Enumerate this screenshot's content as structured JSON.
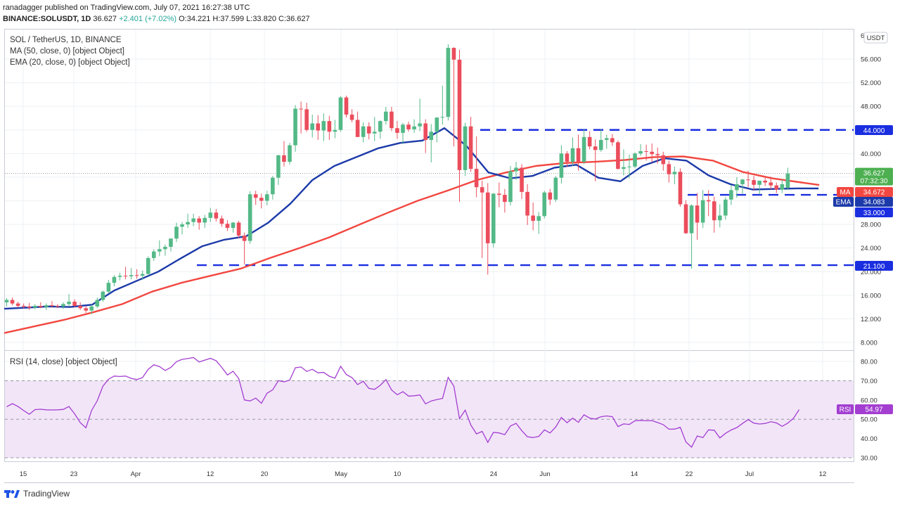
{
  "header": {
    "publisher_line": "ranadagger published on TradingView.com, July 07, 2021 16:27:38 UTC",
    "symbol": "BINANCE:SOLUSDT, 1D",
    "last": "36.627",
    "change": "+2.401 (+7.02%)",
    "open": "O:34.221",
    "high": "H:37.599",
    "low": "L:33.820",
    "close": "C:36.627"
  },
  "legend": {
    "title": "SOL / TetherUS, 1D, BINANCE",
    "ma": "MA (50, close, 0) [object Object]",
    "ema": "EMA (20, close, 0) [object Object]",
    "rsi": "RSI (14, close) [object Object]"
  },
  "currency_badge": "USDT",
  "footer": {
    "brand": "TradingView"
  },
  "colors": {
    "up": "#53b987",
    "down": "#eb4d5c",
    "ma": "#f24740",
    "ema": "#1c3aa9",
    "rsi": "#a33ed1",
    "rsi_fill": "#f2e5f8",
    "level": "#1a2ee0",
    "price": "#4caf50"
  },
  "chart_data": [
    {
      "type": "candlestick",
      "title": "SOL / TetherUS, 1D, BINANCE",
      "ylim": [
        6.5,
        60
      ],
      "y_ticks": [
        "8.000",
        "12.000",
        "16.000",
        "20.000",
        "24.000",
        "28.000",
        "32.000",
        "36.000",
        "40.000",
        "44.000",
        "48.000",
        "52.000",
        "56.000",
        "6"
      ],
      "x_ticks": [
        "15",
        "23",
        "Apr",
        "12",
        "20",
        "May",
        "10",
        "24",
        "Jun",
        "14",
        "22",
        "Jul",
        "12"
      ],
      "ohlc": [
        [
          14.8,
          15.5,
          14.1,
          15.2
        ],
        [
          15.2,
          15.6,
          14.3,
          14.6
        ],
        [
          14.6,
          14.9,
          13.9,
          14.2
        ],
        [
          14.2,
          14.6,
          13.7,
          14.1
        ],
        [
          14.1,
          14.7,
          13.5,
          13.9
        ],
        [
          13.9,
          14.5,
          13.6,
          14.2
        ],
        [
          14.2,
          14.8,
          13.8,
          14.0
        ],
        [
          14.0,
          14.6,
          13.5,
          14.3
        ],
        [
          14.3,
          15.0,
          13.9,
          14.2
        ],
        [
          14.2,
          14.5,
          13.8,
          14.1
        ],
        [
          14.1,
          14.8,
          13.7,
          14.5
        ],
        [
          14.5,
          16.2,
          14.1,
          14.9
        ],
        [
          14.9,
          15.3,
          14.0,
          14.2
        ],
        [
          14.2,
          14.8,
          13.5,
          13.8
        ],
        [
          13.8,
          14.2,
          13.0,
          13.4
        ],
        [
          13.4,
          14.4,
          12.8,
          14.1
        ],
        [
          14.1,
          15.6,
          13.8,
          15.2
        ],
        [
          15.2,
          16.8,
          14.9,
          16.6
        ],
        [
          16.6,
          18.6,
          16.3,
          18.1
        ],
        [
          18.1,
          19.4,
          17.5,
          19.1
        ],
        [
          19.1,
          19.8,
          18.5,
          19.3
        ],
        [
          19.3,
          20.8,
          18.7,
          19.2
        ],
        [
          19.2,
          20.6,
          18.7,
          19.4
        ],
        [
          19.4,
          20.4,
          18.8,
          19.3
        ],
        [
          19.3,
          20.2,
          18.6,
          19.6
        ],
        [
          19.6,
          22.6,
          19.3,
          22.3
        ],
        [
          22.3,
          23.8,
          21.8,
          23.4
        ],
        [
          23.4,
          25.3,
          22.6,
          23.8
        ],
        [
          23.8,
          24.6,
          22.7,
          24.2
        ],
        [
          24.2,
          25.6,
          23.4,
          25.6
        ],
        [
          25.6,
          28.3,
          25.0,
          27.6
        ],
        [
          27.6,
          28.4,
          26.3,
          28.0
        ],
        [
          28.0,
          29.8,
          27.4,
          28.4
        ],
        [
          28.4,
          29.8,
          27.7,
          29.0
        ],
        [
          29.0,
          29.4,
          27.1,
          28.3
        ],
        [
          28.3,
          29.6,
          27.4,
          29.1
        ],
        [
          29.1,
          30.8,
          28.4,
          30.0
        ],
        [
          30.0,
          30.6,
          28.5,
          29.0
        ],
        [
          29.0,
          29.5,
          27.6,
          28.1
        ],
        [
          28.1,
          28.7,
          26.9,
          27.4
        ],
        [
          27.4,
          28.4,
          26.6,
          28.3
        ],
        [
          28.3,
          28.6,
          25.7,
          26.1
        ],
        [
          26.1,
          26.6,
          21.2,
          25.2
        ],
        [
          25.2,
          33.6,
          24.7,
          33.1
        ],
        [
          33.1,
          33.7,
          31.3,
          32.5
        ],
        [
          32.5,
          33.2,
          30.7,
          32.0
        ],
        [
          32.0,
          33.7,
          31.2,
          33.1
        ],
        [
          33.1,
          36.2,
          32.2,
          35.9
        ],
        [
          35.9,
          39.8,
          34.7,
          39.7
        ],
        [
          39.7,
          42.1,
          37.8,
          38.6
        ],
        [
          38.6,
          41.8,
          38.1,
          41.4
        ],
        [
          41.4,
          48.2,
          40.3,
          47.6
        ],
        [
          47.6,
          48.8,
          43.4,
          47.5
        ],
        [
          47.5,
          48.6,
          43.7,
          44.0
        ],
        [
          44.0,
          46.6,
          42.7,
          45.1
        ],
        [
          45.1,
          46.5,
          42.3,
          43.9
        ],
        [
          43.9,
          46.8,
          42.1,
          45.5
        ],
        [
          45.5,
          46.4,
          42.3,
          43.7
        ],
        [
          43.7,
          45.7,
          42.6,
          44.0
        ],
        [
          44.0,
          49.7,
          43.7,
          49.5
        ],
        [
          49.5,
          49.8,
          46.1,
          46.6
        ],
        [
          46.6,
          47.5,
          45.3,
          45.7
        ],
        [
          45.7,
          47.1,
          42.8,
          42.8
        ],
        [
          42.8,
          45.3,
          41.9,
          44.6
        ],
        [
          44.6,
          45.3,
          42.4,
          43.4
        ],
        [
          43.4,
          46.2,
          42.1,
          43.7
        ],
        [
          43.7,
          45.6,
          42.5,
          45.5
        ],
        [
          45.5,
          47.9,
          44.9,
          47.1
        ],
        [
          47.1,
          47.9,
          43.8,
          44.3
        ],
        [
          44.3,
          45.5,
          42.5,
          43.5
        ],
        [
          43.5,
          45.2,
          41.6,
          44.9
        ],
        [
          44.9,
          45.4,
          43.7,
          44.1
        ],
        [
          44.1,
          45.8,
          43.5,
          44.6
        ],
        [
          44.6,
          49.3,
          43.8,
          45.1
        ],
        [
          45.1,
          45.8,
          40.1,
          42.3
        ],
        [
          42.3,
          45.0,
          38.5,
          43.7
        ],
        [
          43.7,
          45.7,
          41.9,
          46.1
        ],
        [
          46.1,
          51.5,
          44.9,
          46.2
        ],
        [
          46.2,
          58.5,
          45.6,
          57.9
        ],
        [
          57.9,
          58.0,
          41.2,
          55.9
        ],
        [
          55.9,
          57.6,
          31.8,
          37.2
        ],
        [
          37.2,
          45.2,
          36.2,
          44.6
        ],
        [
          44.6,
          46.2,
          36.9,
          37.4
        ],
        [
          37.4,
          42.9,
          32.6,
          34.3
        ],
        [
          34.3,
          35.4,
          22.3,
          33.4
        ],
        [
          33.4,
          35.0,
          19.5,
          24.8
        ],
        [
          24.8,
          33.3,
          24.1,
          33.2
        ],
        [
          33.2,
          35.1,
          30.9,
          33.0
        ],
        [
          33.0,
          34.0,
          30.0,
          31.8
        ],
        [
          31.8,
          37.9,
          31.2,
          37.0
        ],
        [
          37.0,
          38.6,
          35.5,
          37.6
        ],
        [
          37.6,
          38.2,
          32.3,
          33.5
        ],
        [
          33.5,
          34.8,
          27.9,
          29.5
        ],
        [
          29.5,
          31.7,
          27.0,
          28.6
        ],
        [
          28.6,
          30.1,
          26.4,
          29.4
        ],
        [
          29.4,
          33.7,
          29.0,
          33.4
        ],
        [
          33.4,
          34.0,
          31.3,
          32.2
        ],
        [
          32.2,
          36.2,
          31.8,
          35.9
        ],
        [
          35.9,
          41.4,
          34.9,
          40.0
        ],
        [
          40.0,
          40.4,
          37.7,
          38.6
        ],
        [
          38.6,
          42.7,
          37.9,
          40.9
        ],
        [
          40.9,
          43.2,
          37.1,
          38.6
        ],
        [
          38.6,
          44.1,
          38.2,
          42.8
        ],
        [
          42.8,
          43.8,
          40.7,
          41.2
        ],
        [
          41.2,
          42.4,
          35.3,
          40.6
        ],
        [
          40.6,
          44.1,
          40.3,
          42.3
        ],
        [
          42.3,
          43.2,
          40.8,
          42.6
        ],
        [
          42.6,
          43.3,
          41.3,
          41.9
        ],
        [
          41.9,
          42.2,
          37.3,
          37.4
        ],
        [
          37.4,
          40.7,
          36.3,
          37.7
        ],
        [
          37.7,
          39.8,
          35.8,
          37.8
        ],
        [
          37.8,
          40.2,
          37.5,
          40.0
        ],
        [
          40.0,
          41.6,
          39.6,
          40.4
        ],
        [
          40.4,
          41.5,
          38.8,
          40.3
        ],
        [
          40.3,
          41.7,
          38.5,
          39.9
        ],
        [
          39.9,
          41.0,
          38.3,
          39.7
        ],
        [
          39.7,
          40.3,
          37.1,
          38.2
        ],
        [
          38.2,
          38.8,
          35.1,
          36.5
        ],
        [
          36.5,
          37.8,
          34.8,
          36.9
        ],
        [
          36.9,
          37.5,
          31.0,
          31.4
        ],
        [
          31.4,
          32.1,
          26.4,
          26.5
        ],
        [
          26.5,
          31.4,
          20.5,
          31.2
        ],
        [
          31.2,
          33.3,
          25.4,
          28.3
        ],
        [
          28.3,
          33.8,
          27.4,
          32.1
        ],
        [
          32.1,
          33.8,
          29.4,
          31.9
        ],
        [
          31.9,
          32.7,
          26.6,
          28.7
        ],
        [
          28.7,
          31.4,
          27.5,
          29.5
        ],
        [
          29.5,
          32.6,
          28.8,
          32.2
        ],
        [
          32.2,
          34.6,
          31.3,
          33.8
        ],
        [
          33.8,
          36.0,
          32.5,
          34.8
        ],
        [
          34.8,
          35.7,
          33.2,
          35.6
        ],
        [
          35.6,
          37.1,
          34.3,
          35.5
        ],
        [
          35.5,
          36.2,
          33.7,
          34.7
        ],
        [
          34.7,
          35.2,
          33.1,
          35.4
        ],
        [
          35.4,
          36.0,
          34.5,
          35.1
        ],
        [
          35.1,
          36.1,
          33.9,
          34.6
        ],
        [
          34.6,
          35.1,
          33.3,
          33.9
        ],
        [
          33.9,
          35.6,
          33.3,
          34.8
        ],
        [
          34.2,
          37.6,
          33.8,
          36.627
        ]
      ],
      "ma50": [
        [
          0,
          9.6
        ],
        [
          10,
          10.7
        ],
        [
          20,
          11.8
        ],
        [
          30,
          13.1
        ],
        [
          40,
          14.5
        ],
        [
          50,
          16.6
        ],
        [
          60,
          18.1
        ],
        [
          70,
          19.3
        ],
        [
          80,
          20.5
        ],
        [
          90,
          22.3
        ],
        [
          100,
          24.0
        ],
        [
          110,
          25.8
        ],
        [
          120,
          27.9
        ],
        [
          130,
          30.0
        ],
        [
          140,
          32.0
        ],
        [
          150,
          33.7
        ],
        [
          160,
          35.5
        ],
        [
          170,
          36.8
        ],
        [
          180,
          37.9
        ],
        [
          190,
          38.4
        ],
        [
          200,
          38.6
        ],
        [
          210,
          38.9
        ],
        [
          220,
          39.4
        ],
        [
          230,
          39.5
        ],
        [
          240,
          38.8
        ],
        [
          250,
          36.9
        ],
        [
          260,
          35.8
        ],
        [
          270,
          35.1
        ],
        [
          276,
          34.672
        ]
      ],
      "ema20": [
        [
          0,
          13.7
        ],
        [
          10,
          13.9
        ],
        [
          20,
          14.1
        ],
        [
          30,
          14.0
        ],
        [
          40,
          14.4
        ],
        [
          50,
          16.8
        ],
        [
          60,
          18.4
        ],
        [
          70,
          20.0
        ],
        [
          80,
          22.2
        ],
        [
          90,
          24.3
        ],
        [
          100,
          25.4
        ],
        [
          110,
          26.0
        ],
        [
          120,
          28.3
        ],
        [
          130,
          31.5
        ],
        [
          140,
          35.5
        ],
        [
          150,
          37.9
        ],
        [
          160,
          39.4
        ],
        [
          170,
          40.9
        ],
        [
          180,
          41.8
        ],
        [
          190,
          42.2
        ],
        [
          200,
          44.3
        ],
        [
          210,
          41.3
        ],
        [
          220,
          36.8
        ],
        [
          230,
          35.8
        ],
        [
          240,
          36.2
        ],
        [
          250,
          37.6
        ],
        [
          260,
          38.1
        ],
        [
          270,
          35.9
        ],
        [
          280,
          35.3
        ],
        [
          290,
          37.9
        ],
        [
          300,
          39.2
        ],
        [
          310,
          38.8
        ],
        [
          320,
          36.3
        ],
        [
          330,
          34.8
        ],
        [
          340,
          33.9
        ],
        [
          350,
          34.0
        ],
        [
          360,
          34.1
        ],
        [
          370,
          34.083
        ]
      ],
      "levels": [
        {
          "value": 44.0,
          "label": "44.000"
        },
        {
          "value": 33.0,
          "label": "33.000"
        },
        {
          "value": 21.1,
          "label": "21.100"
        }
      ],
      "price_tag": {
        "value": 36.627,
        "label": "36.627",
        "countdown": "07:32:30"
      },
      "ma_tag": {
        "name": "MA",
        "value": 34.672,
        "label": "34.672"
      },
      "ema_tag": {
        "name": "EMA",
        "value": 34.083,
        "label": "34.083"
      }
    },
    {
      "type": "line",
      "title": "RSI (14, close) [object Object]",
      "ylim": [
        28,
        84
      ],
      "y_ticks": [
        "30.00",
        "40.00",
        "50.00",
        "60.00",
        "70.00",
        "80.00"
      ],
      "band": [
        30,
        70
      ],
      "midline": 50,
      "values": [
        56.5,
        58.1,
        56.6,
        54.5,
        52.6,
        55.0,
        55.2,
        54.9,
        54.8,
        54.9,
        55.1,
        56.6,
        52.8,
        48.2,
        45.6,
        54.6,
        59.6,
        67.2,
        70.8,
        72.4,
        72.2,
        72.4,
        71.2,
        70.6,
        71.6,
        75.9,
        78.3,
        77.3,
        75.3,
        76.9,
        79.9,
        81.1,
        81.5,
        82.0,
        79.7,
        80.7,
        81.6,
        80.4,
        76.9,
        73.0,
        74.9,
        71.1,
        60.0,
        59.5,
        61.0,
        58.3,
        63.5,
        65.3,
        70.0,
        69.4,
        70.3,
        76.7,
        77.1,
        74.8,
        75.9,
        74.1,
        74.3,
        72.3,
        71.3,
        77.5,
        73.2,
        71.6,
        68.0,
        69.7,
        66.0,
        65.5,
        67.6,
        70.6,
        65.2,
        62.7,
        64.3,
        62.0,
        62.2,
        62.6,
        58.0,
        59.5,
        60.2,
        60.8,
        71.7,
        67.2,
        50.3,
        54.7,
        47.0,
        42.4,
        43.7,
        38.0,
        43.2,
        42.9,
        42.0,
        46.5,
        47.9,
        44.1,
        40.9,
        40.5,
        41.1,
        44.5,
        42.9,
        46.0,
        50.9,
        48.2,
        50.6,
        48.4,
        52.3,
        50.6,
        50.1,
        51.3,
        51.7,
        51.3,
        46.2,
        47.6,
        47.3,
        49.2,
        49.4,
        49.2,
        49.3,
        48.3,
        47.2,
        44.8,
        44.9,
        45.8,
        38.2,
        35.5,
        41.3,
        40.5,
        44.5,
        44.3,
        40.3,
        42.7,
        44.4,
        45.7,
        47.8,
        49.8,
        48.0,
        47.5,
        47.8,
        48.7,
        48.1,
        46.3,
        48.0,
        50.5,
        54.97
      ],
      "last_label": "54.97",
      "tag_name": "RSI"
    }
  ]
}
